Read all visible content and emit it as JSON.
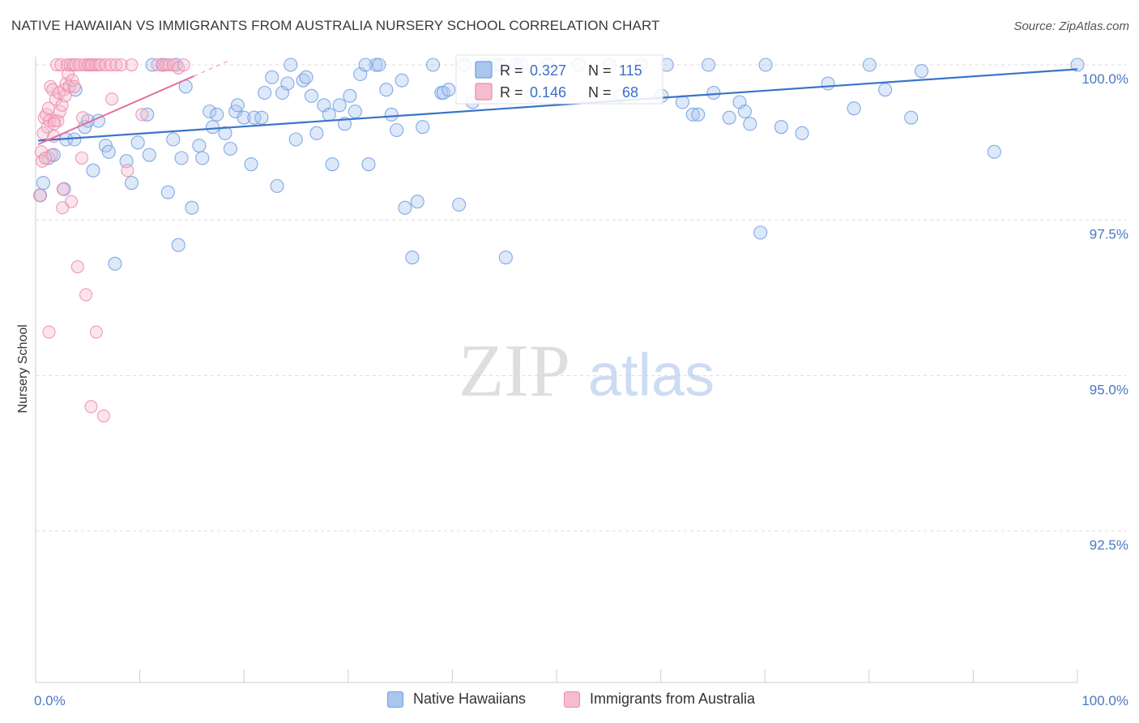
{
  "title": "NATIVE HAWAIIAN VS IMMIGRANTS FROM AUSTRALIA NURSERY SCHOOL CORRELATION CHART",
  "source": "Source: ZipAtlas.com",
  "watermark": {
    "zip": "ZIP",
    "atlas": "atlas"
  },
  "chart_data": {
    "type": "scatter",
    "title": "NATIVE HAWAIIAN VS IMMIGRANTS FROM AUSTRALIA NURSERY SCHOOL CORRELATION CHART",
    "xlabel": "",
    "ylabel": "Nursery School",
    "xlim": [
      0,
      100
    ],
    "ylim": [
      90.0,
      100.4
    ],
    "x_tick_labels": {
      "left": "0.0%",
      "right": "100.0%"
    },
    "y_ticks": [
      {
        "value": 100.0,
        "label": "100.0%"
      },
      {
        "value": 97.5,
        "label": "97.5%"
      },
      {
        "value": 95.0,
        "label": "95.0%"
      },
      {
        "value": 92.5,
        "label": "92.5%"
      }
    ],
    "legend": {
      "position": "top-center",
      "entries": [
        {
          "r_label": "R =",
          "r_value": "0.327",
          "n_label": "N =",
          "n_value": "115"
        },
        {
          "r_label": "R =",
          "r_value": "0.146",
          "n_label": "N =",
          "n_value": "68"
        }
      ]
    },
    "series": [
      {
        "name": "Native Hawaiians",
        "color": "#6f9de0",
        "fill": "#a9c6ef",
        "trend": {
          "x": [
            0,
            100
          ],
          "y": [
            98.78,
            99.93
          ]
        },
        "points": [
          [
            0.2,
            97.9
          ],
          [
            0.5,
            98.1
          ],
          [
            1.0,
            98.5
          ],
          [
            1.5,
            98.55
          ],
          [
            2.5,
            98.0
          ],
          [
            2.7,
            98.8
          ],
          [
            3.5,
            98.8
          ],
          [
            3.6,
            99.6
          ],
          [
            4.5,
            99.0
          ],
          [
            4.8,
            99.1
          ],
          [
            5.3,
            98.3
          ],
          [
            5.8,
            99.1
          ],
          [
            6.5,
            98.7
          ],
          [
            6.8,
            98.6
          ],
          [
            7.4,
            96.8
          ],
          [
            8.5,
            98.45
          ],
          [
            9.0,
            98.1
          ],
          [
            9.6,
            98.75
          ],
          [
            10.5,
            99.2
          ],
          [
            10.7,
            98.55
          ],
          [
            11.0,
            100.0
          ],
          [
            12.0,
            100.0
          ],
          [
            12.5,
            97.95
          ],
          [
            13.0,
            98.8
          ],
          [
            13.5,
            97.1
          ],
          [
            13.8,
            98.5
          ],
          [
            14.2,
            99.65
          ],
          [
            14.8,
            97.7
          ],
          [
            15.5,
            98.7
          ],
          [
            15.8,
            98.5
          ],
          [
            16.5,
            99.25
          ],
          [
            16.8,
            99.0
          ],
          [
            17.2,
            99.2
          ],
          [
            18.0,
            98.9
          ],
          [
            18.5,
            98.65
          ],
          [
            19.0,
            99.25
          ],
          [
            19.2,
            99.35
          ],
          [
            19.8,
            99.15
          ],
          [
            20.5,
            98.4
          ],
          [
            20.8,
            99.15
          ],
          [
            21.5,
            99.15
          ],
          [
            21.8,
            99.55
          ],
          [
            22.5,
            99.8
          ],
          [
            23.0,
            98.05
          ],
          [
            23.5,
            99.55
          ],
          [
            24.0,
            99.7
          ],
          [
            24.3,
            100.0
          ],
          [
            24.8,
            98.8
          ],
          [
            25.5,
            99.75
          ],
          [
            25.8,
            99.8
          ],
          [
            26.3,
            99.5
          ],
          [
            26.8,
            98.9
          ],
          [
            27.5,
            99.35
          ],
          [
            28.0,
            99.2
          ],
          [
            28.3,
            98.4
          ],
          [
            29.0,
            99.35
          ],
          [
            29.5,
            99.05
          ],
          [
            30.0,
            99.5
          ],
          [
            30.5,
            99.25
          ],
          [
            31.0,
            99.85
          ],
          [
            31.8,
            98.4
          ],
          [
            32.5,
            100.0
          ],
          [
            32.8,
            100.0
          ],
          [
            33.5,
            99.6
          ],
          [
            34.0,
            99.2
          ],
          [
            34.5,
            98.95
          ],
          [
            35.0,
            99.75
          ],
          [
            35.3,
            97.7
          ],
          [
            36.0,
            96.9
          ],
          [
            36.5,
            97.8
          ],
          [
            37.0,
            99.0
          ],
          [
            38.0,
            100.0
          ],
          [
            38.8,
            99.55
          ],
          [
            39.0,
            99.55
          ],
          [
            39.5,
            99.6
          ],
          [
            40.5,
            97.75
          ],
          [
            41.0,
            100.0
          ],
          [
            41.8,
            99.4
          ],
          [
            43.0,
            100.0
          ],
          [
            44.0,
            100.0
          ],
          [
            45.0,
            96.9
          ],
          [
            46.0,
            100.0
          ],
          [
            47.5,
            99.5
          ],
          [
            49.0,
            100.0
          ],
          [
            52.0,
            100.0
          ],
          [
            55.0,
            100.0
          ],
          [
            58.0,
            100.0
          ],
          [
            60.0,
            99.5
          ],
          [
            60.5,
            100.0
          ],
          [
            62.0,
            99.4
          ],
          [
            63.0,
            99.2
          ],
          [
            63.5,
            99.2
          ],
          [
            64.5,
            100.0
          ],
          [
            65.0,
            99.55
          ],
          [
            66.5,
            99.15
          ],
          [
            67.5,
            99.4
          ],
          [
            68.0,
            99.25
          ],
          [
            68.5,
            99.05
          ],
          [
            69.5,
            97.3
          ],
          [
            70.0,
            100.0
          ],
          [
            71.5,
            99.0
          ],
          [
            73.5,
            98.9
          ],
          [
            76.0,
            99.7
          ],
          [
            78.5,
            99.3
          ],
          [
            80.0,
            100.0
          ],
          [
            81.5,
            99.6
          ],
          [
            84.0,
            99.15
          ],
          [
            85.0,
            99.9
          ],
          [
            92.0,
            98.6
          ],
          [
            100.0,
            100.0
          ],
          [
            44.5,
            100.0
          ],
          [
            46.5,
            100.0
          ],
          [
            56.0,
            99.5
          ],
          [
            13.3,
            100.0
          ],
          [
            31.5,
            100.0
          ]
        ]
      },
      {
        "name": "Immigrants from Australia",
        "color": "#ec8aaa",
        "fill": "#f6bccd",
        "trend": {
          "x": [
            0,
            15
          ],
          "y": [
            98.72,
            99.82
          ]
        },
        "points": [
          [
            0.2,
            97.9
          ],
          [
            0.3,
            98.6
          ],
          [
            0.4,
            98.45
          ],
          [
            0.5,
            98.9
          ],
          [
            0.6,
            99.15
          ],
          [
            0.8,
            99.2
          ],
          [
            0.9,
            99.0
          ],
          [
            1.0,
            99.3
          ],
          [
            1.1,
            99.1
          ],
          [
            1.2,
            99.65
          ],
          [
            1.3,
            98.55
          ],
          [
            1.4,
            99.6
          ],
          [
            1.5,
            98.85
          ],
          [
            1.6,
            99.1
          ],
          [
            1.7,
            99.45
          ],
          [
            1.8,
            100.0
          ],
          [
            1.9,
            99.1
          ],
          [
            2.0,
            99.55
          ],
          [
            2.1,
            99.25
          ],
          [
            2.2,
            100.0
          ],
          [
            2.3,
            99.35
          ],
          [
            2.4,
            98.0
          ],
          [
            2.5,
            99.6
          ],
          [
            2.6,
            99.5
          ],
          [
            2.7,
            99.7
          ],
          [
            2.8,
            100.0
          ],
          [
            2.9,
            99.85
          ],
          [
            3.0,
            99.65
          ],
          [
            3.1,
            100.0
          ],
          [
            3.2,
            97.8
          ],
          [
            3.3,
            99.75
          ],
          [
            3.4,
            100.0
          ],
          [
            3.5,
            99.65
          ],
          [
            3.6,
            100.0
          ],
          [
            3.8,
            96.75
          ],
          [
            4.0,
            100.0
          ],
          [
            4.2,
            98.5
          ],
          [
            4.3,
            99.15
          ],
          [
            4.5,
            100.0
          ],
          [
            4.6,
            96.3
          ],
          [
            4.8,
            100.0
          ],
          [
            5.0,
            100.0
          ],
          [
            5.1,
            94.5
          ],
          [
            5.2,
            100.0
          ],
          [
            5.5,
            100.0
          ],
          [
            5.6,
            95.7
          ],
          [
            5.8,
            100.0
          ],
          [
            6.0,
            100.0
          ],
          [
            6.3,
            94.35
          ],
          [
            6.5,
            100.0
          ],
          [
            7.0,
            100.0
          ],
          [
            7.1,
            99.45
          ],
          [
            7.5,
            100.0
          ],
          [
            8.0,
            100.0
          ],
          [
            8.6,
            98.3
          ],
          [
            9.0,
            100.0
          ],
          [
            10.0,
            99.2
          ],
          [
            11.5,
            100.0
          ],
          [
            12.0,
            100.0
          ],
          [
            12.3,
            100.0
          ],
          [
            12.6,
            100.0
          ],
          [
            13.0,
            100.0
          ],
          [
            13.5,
            99.95
          ],
          [
            14.0,
            100.0
          ],
          [
            1.05,
            95.7
          ],
          [
            2.35,
            97.7
          ],
          [
            0.7,
            98.5
          ],
          [
            1.55,
            99.05
          ]
        ]
      }
    ]
  }
}
